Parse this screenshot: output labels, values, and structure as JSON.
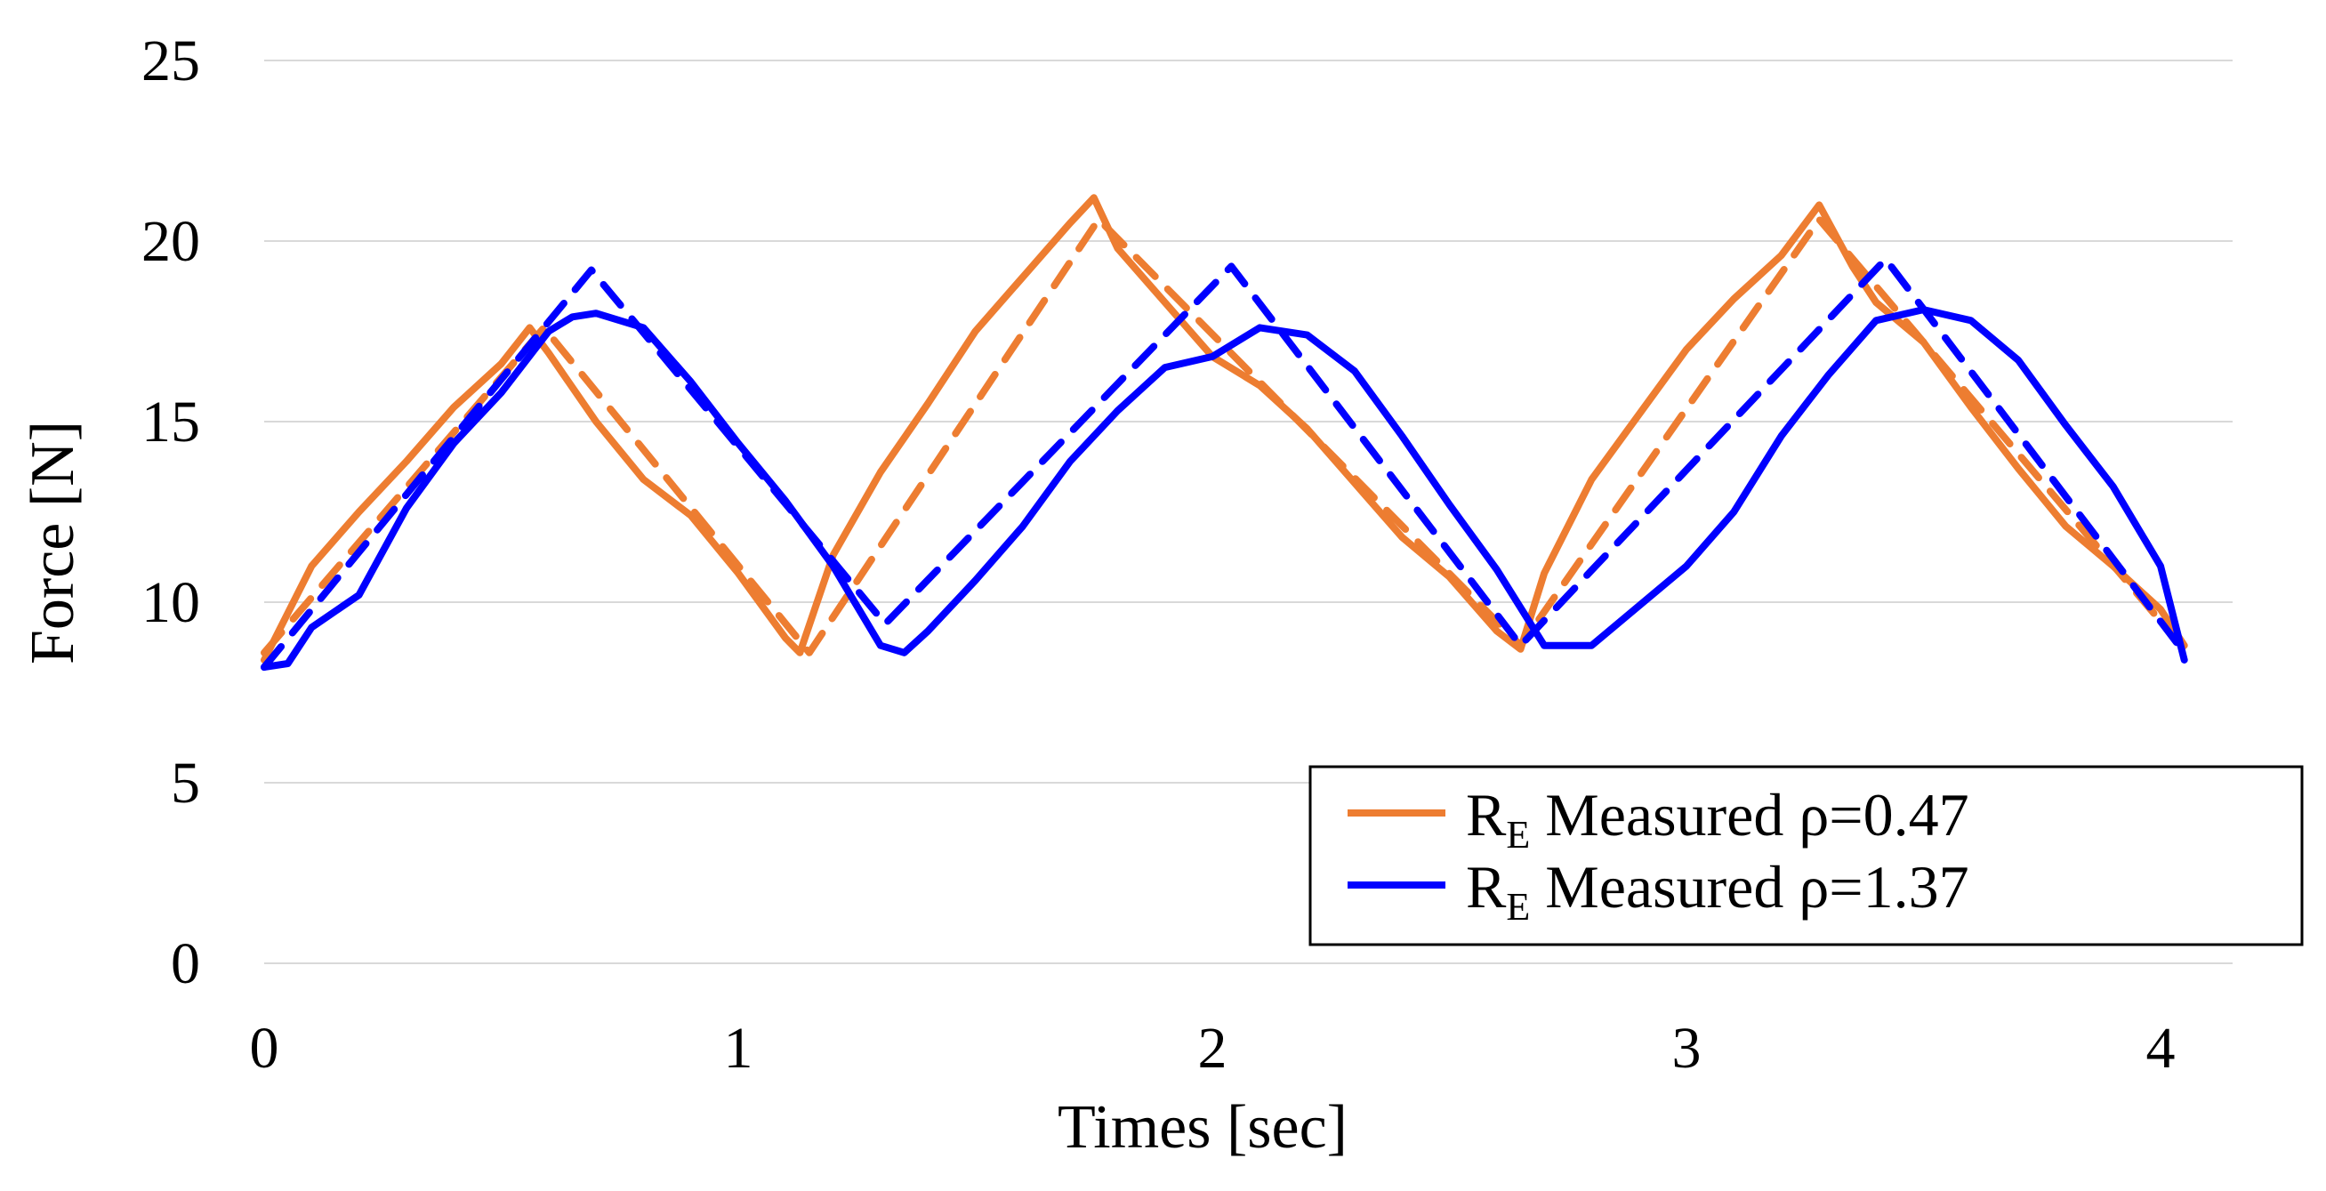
{
  "chart_data": {
    "type": "line",
    "title": "",
    "xlabel": "Times [sec]",
    "ylabel": "Force [N]",
    "xlim": [
      0,
      4.2
    ],
    "ylim": [
      0,
      25
    ],
    "x_ticks": [
      "0",
      "1",
      "2",
      "3",
      "4"
    ],
    "y_ticks": [
      "0",
      "5",
      "10",
      "15",
      "20",
      "25"
    ],
    "grid": "horizontal",
    "legend_position": "bottom-right",
    "legend": [
      {
        "prefix": "R",
        "sub": "E",
        "suffix": " Measured ρ=0.47",
        "color": "#ED7D31"
      },
      {
        "prefix": "R",
        "sub": "E",
        "suffix": " Measured ρ=1.37",
        "color": "#0000FF"
      }
    ],
    "series": [
      {
        "name": "R_E Measured ρ=0.47",
        "style": "solid",
        "color": "#ED7D31",
        "x": [
          0,
          0.1,
          0.2,
          0.3,
          0.4,
          0.5,
          0.56,
          0.6,
          0.7,
          0.8,
          0.9,
          1.0,
          1.1,
          1.13,
          1.2,
          1.3,
          1.4,
          1.5,
          1.6,
          1.7,
          1.75,
          1.8,
          1.9,
          2.0,
          2.1,
          2.2,
          2.3,
          2.4,
          2.5,
          2.6,
          2.65,
          2.7,
          2.8,
          2.9,
          3.0,
          3.1,
          3.2,
          3.28,
          3.35,
          3.4,
          3.5,
          3.6,
          3.7,
          3.8,
          3.9,
          4.0,
          4.05
        ],
        "y": [
          8.4,
          11.0,
          12.5,
          13.9,
          15.4,
          16.6,
          17.6,
          16.9,
          15.0,
          13.4,
          12.4,
          10.8,
          9.0,
          8.6,
          11.3,
          13.6,
          15.5,
          17.5,
          19.0,
          20.5,
          21.2,
          19.8,
          18.3,
          16.8,
          16.0,
          14.8,
          13.3,
          11.8,
          10.7,
          9.2,
          8.7,
          10.8,
          13.4,
          15.2,
          17.0,
          18.4,
          19.6,
          21.0,
          19.3,
          18.3,
          17.2,
          15.4,
          13.7,
          12.1,
          11.0,
          9.8,
          8.8
        ]
      },
      {
        "name": "R_E Measured ρ=0.47 (model)",
        "style": "dashed",
        "color": "#ED7D31",
        "x": [
          0,
          0.59,
          1.15,
          1.76,
          2.65,
          3.28,
          4.05
        ],
        "y": [
          8.6,
          17.6,
          8.6,
          20.6,
          8.8,
          20.6,
          8.7
        ]
      },
      {
        "name": "R_E Measured ρ=1.37",
        "style": "solid",
        "color": "#0000FF",
        "x": [
          0,
          0.05,
          0.1,
          0.2,
          0.3,
          0.4,
          0.5,
          0.6,
          0.65,
          0.7,
          0.8,
          0.9,
          1.0,
          1.1,
          1.2,
          1.3,
          1.35,
          1.4,
          1.5,
          1.6,
          1.7,
          1.8,
          1.9,
          2.0,
          2.1,
          2.2,
          2.3,
          2.4,
          2.5,
          2.6,
          2.7,
          2.8,
          2.9,
          3.0,
          3.1,
          3.2,
          3.3,
          3.4,
          3.5,
          3.6,
          3.7,
          3.8,
          3.9,
          4.0,
          4.05
        ],
        "y": [
          8.2,
          8.3,
          9.3,
          10.2,
          12.6,
          14.4,
          15.8,
          17.5,
          17.9,
          18.0,
          17.6,
          16.1,
          14.4,
          12.8,
          11.0,
          8.8,
          8.6,
          9.2,
          10.6,
          12.1,
          13.9,
          15.3,
          16.5,
          16.8,
          17.6,
          17.4,
          16.4,
          14.6,
          12.7,
          10.9,
          8.8,
          8.8,
          9.9,
          11.0,
          12.5,
          14.6,
          16.3,
          17.8,
          18.1,
          17.8,
          16.7,
          14.9,
          13.2,
          11.0,
          8.4
        ]
      },
      {
        "name": "R_E Measured ρ=1.37 (model)",
        "style": "dashed",
        "color": "#0000FF",
        "x": [
          0,
          0.69,
          1.31,
          2.04,
          2.65,
          3.42,
          4.05
        ],
        "y": [
          8.2,
          19.2,
          9.4,
          19.3,
          8.8,
          19.5,
          8.6
        ]
      }
    ]
  }
}
